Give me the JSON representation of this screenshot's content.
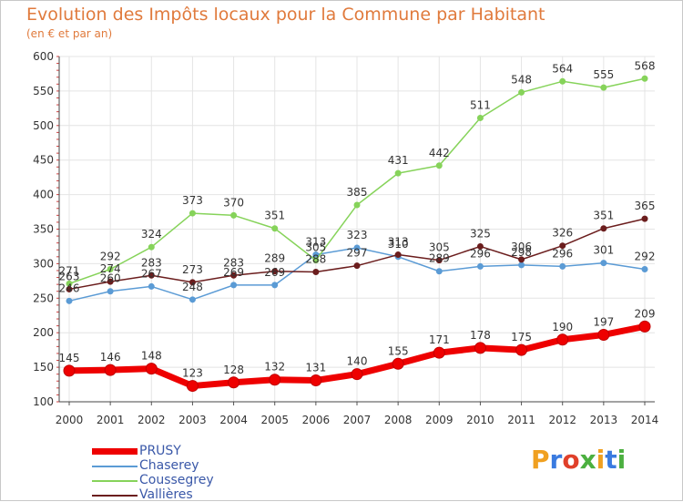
{
  "title": "Evolution des Impôts locaux pour la Commune par Habitant",
  "subtitle": "(en € et par an)",
  "logo": {
    "letters": [
      "P",
      "r",
      "o",
      "x",
      "i",
      "t",
      "i"
    ],
    "colors": [
      "#f0a020",
      "#3a7be0",
      "#e0402a",
      "#4cb040",
      "#f0a020",
      "#3a7be0",
      "#4cb040"
    ]
  },
  "chart_data": {
    "type": "line",
    "x": [
      "2000",
      "2001",
      "2002",
      "2003",
      "2004",
      "2005",
      "2006",
      "2007",
      "2008",
      "2009",
      "2010",
      "2011",
      "2012",
      "2013",
      "2014"
    ],
    "ylim": [
      100,
      600
    ],
    "yticks": [
      100,
      150,
      200,
      250,
      300,
      350,
      400,
      450,
      500,
      550,
      600
    ],
    "grid": true,
    "legend_position": "bottom-left",
    "series": [
      {
        "name": "PRUSY",
        "color": "#ee0000",
        "values": [
          145,
          146,
          148,
          123,
          128,
          132,
          131,
          140,
          155,
          171,
          178,
          175,
          190,
          197,
          209
        ]
      },
      {
        "name": "Chaserey",
        "color": "#5b9bd5",
        "values": [
          246,
          260,
          267,
          248,
          269,
          269,
          313,
          323,
          310,
          289,
          296,
          298,
          296,
          301,
          292
        ]
      },
      {
        "name": "Coussegrey",
        "color": "#86d35a",
        "values": [
          271,
          292,
          324,
          373,
          370,
          351,
          305,
          385,
          431,
          442,
          511,
          548,
          564,
          555,
          568
        ]
      },
      {
        "name": "Vallières",
        "color": "#6b1d1d",
        "values": [
          263,
          274,
          283,
          273,
          283,
          289,
          288,
          297,
          313,
          305,
          325,
          306,
          326,
          351,
          365
        ]
      }
    ]
  }
}
